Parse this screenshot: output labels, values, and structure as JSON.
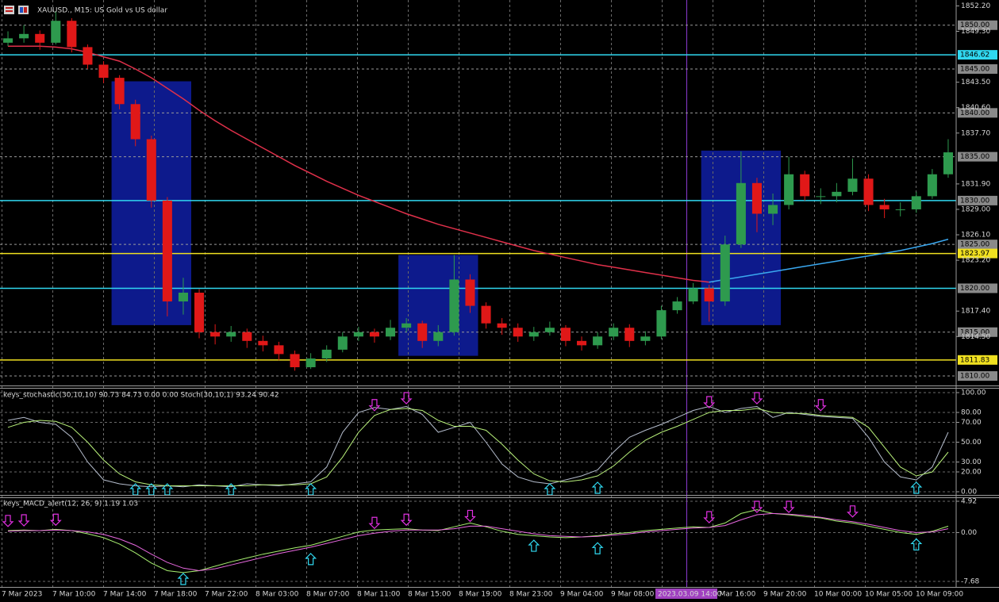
{
  "chart_data": [
    {
      "type": "candlestick",
      "title": "XAUUSD., M15: US Gold vs US dollar",
      "open": [
        1848,
        1848.5,
        1849,
        1848,
        1850.5,
        1847.5,
        1845.5,
        1844,
        1841,
        1837,
        1830,
        1818.5,
        1819.5,
        1815,
        1814.5,
        1815,
        1814,
        1813.5,
        1812.5,
        1811,
        1812,
        1813,
        1814.5,
        1815,
        1814.5,
        1815.5,
        1816,
        1814,
        1815,
        1821,
        1818,
        1816,
        1815.5,
        1814.5,
        1815,
        1815.5,
        1814,
        1813.5,
        1814.5,
        1815.5,
        1814,
        1814.5,
        1817.5,
        1818.5,
        1820,
        1818.5,
        1825,
        1832,
        1828.5,
        1829.5,
        1833,
        1830.5,
        1830.5,
        1831,
        1832.5,
        1829.5,
        1829,
        1829,
        1830.5,
        1833
      ],
      "high": [
        1849.3,
        1850,
        1849.4,
        1851.6,
        1850.8,
        1847.8,
        1845.9,
        1844.3,
        1841.5,
        1837.4,
        1830.4,
        1821.2,
        1819.9,
        1815.9,
        1815.7,
        1815.4,
        1814.6,
        1813.9,
        1812.9,
        1812.6,
        1813.5,
        1815,
        1815.6,
        1815.4,
        1816.4,
        1816.6,
        1816.3,
        1815.8,
        1823.8,
        1821.6,
        1818.4,
        1816.6,
        1816,
        1815.6,
        1816.2,
        1815.8,
        1814.5,
        1815,
        1816,
        1815.9,
        1815.1,
        1818,
        1819,
        1820.6,
        1820.4,
        1826,
        1835.6,
        1832.6,
        1830.8,
        1835,
        1833.4,
        1831.4,
        1832,
        1834.8,
        1833,
        1830.2,
        1829.8,
        1831,
        1833.6,
        1837
      ],
      "low": [
        1847.6,
        1848,
        1847.2,
        1847.8,
        1846.9,
        1845,
        1843.4,
        1840.4,
        1836.2,
        1829.2,
        1816.8,
        1817,
        1814.3,
        1813.6,
        1813.9,
        1813.2,
        1812.8,
        1811.8,
        1810.6,
        1810.8,
        1811.6,
        1812.7,
        1814,
        1813.8,
        1814.1,
        1815,
        1813.2,
        1813.4,
        1814.6,
        1817.2,
        1815.4,
        1814.7,
        1813.9,
        1814,
        1814.6,
        1813.4,
        1812.9,
        1813.1,
        1814.1,
        1813.3,
        1813.5,
        1814.2,
        1817.1,
        1818.2,
        1816.2,
        1818,
        1824.6,
        1826.4,
        1827.2,
        1829,
        1830,
        1829.6,
        1829.8,
        1830.6,
        1828.8,
        1828,
        1828.2,
        1828.6,
        1830.2,
        1832.6
      ],
      "close": [
        1848.5,
        1849,
        1848,
        1850.5,
        1847.5,
        1845.5,
        1844,
        1841,
        1837,
        1830,
        1818.5,
        1819.5,
        1815,
        1814.5,
        1815,
        1814,
        1813.5,
        1812.5,
        1811,
        1812,
        1813,
        1814.5,
        1815,
        1814.5,
        1815.5,
        1816,
        1814,
        1815,
        1821,
        1818,
        1816,
        1815.5,
        1814.5,
        1815,
        1815.5,
        1814,
        1813.5,
        1814.5,
        1815.5,
        1814,
        1814.5,
        1817.5,
        1818.5,
        1820,
        1818.5,
        1825,
        1832,
        1828.5,
        1829.5,
        1833,
        1830.5,
        1830.5,
        1831,
        1832.5,
        1829.5,
        1829,
        1829,
        1830.5,
        1833,
        1835.5
      ],
      "up_color": "#2e9a4e",
      "down_color": "#e01818",
      "moving_averages": [
        {
          "color": "#e0304a",
          "values": [
            1847.6,
            1847.6,
            1847.6,
            1847.5,
            1847.3,
            1846.9,
            1846.4,
            1845.9,
            1845,
            1844,
            1842.8,
            1841.6,
            1840.3,
            1839.1,
            1838,
            1837,
            1836,
            1835,
            1834,
            1833.1,
            1832.2,
            1831.4,
            1830.6,
            1829.9,
            1829.2,
            1828.5,
            1827.9,
            1827.3,
            1826.8,
            1826.3,
            1825.8,
            1825.3,
            1824.8,
            1824.3,
            1823.9,
            1823.5,
            1823.1,
            1822.7,
            1822.4,
            1822.1,
            1821.8,
            1821.5,
            1821.2,
            1820.9,
            1820.7,
            null,
            null,
            null,
            null,
            null,
            null,
            null,
            null,
            null,
            null,
            null,
            null,
            null,
            null,
            null
          ]
        },
        {
          "color": "#3aa8f0",
          "values": [
            null,
            null,
            null,
            null,
            null,
            null,
            null,
            null,
            null,
            null,
            null,
            null,
            null,
            null,
            null,
            null,
            null,
            null,
            null,
            null,
            null,
            null,
            null,
            null,
            null,
            null,
            null,
            null,
            null,
            null,
            null,
            null,
            null,
            null,
            null,
            null,
            null,
            null,
            null,
            null,
            null,
            null,
            null,
            null,
            1820.7,
            1821,
            1821.3,
            1821.6,
            1821.9,
            1822.2,
            1822.5,
            1822.8,
            1823.1,
            1823.4,
            1823.7,
            1824,
            1824.3,
            1824.7,
            1825.1,
            1825.6
          ]
        }
      ],
      "zones": [
        {
          "from": 7,
          "to": 11,
          "high": 1843.6,
          "low": 1815.8
        },
        {
          "from": 25,
          "to": 29,
          "high": 1823.8,
          "low": 1812.3
        },
        {
          "from": 44,
          "to": 48,
          "high": 1835.7,
          "low": 1815.8
        }
      ],
      "zone_color": "#0d1a8c",
      "levels": [
        {
          "value": 1850,
          "label": "1850.00",
          "color": "#9a9a9a",
          "box_color": "#8a8a8a",
          "style": "dashed"
        },
        {
          "value": 1846.62,
          "label": "1846.62",
          "color": "#30d8f0",
          "box_color": "#30d8f0",
          "style": "solid"
        },
        {
          "value": 1845,
          "label": "1845.00",
          "color": "#9a9a9a",
          "box_color": "#8a8a8a",
          "style": "dashed"
        },
        {
          "value": 1840,
          "label": "1840.00",
          "color": "#9a9a9a",
          "box_color": "#8a8a8a",
          "style": "dashed"
        },
        {
          "value": 1835,
          "label": "1835.00",
          "color": "#9a9a9a",
          "box_color": "#8a8a8a",
          "style": "dashed"
        },
        {
          "value": 1830,
          "label": "1830.00",
          "color": "#30d8f0",
          "box_color": "#8a8a8a",
          "style": "solid"
        },
        {
          "value": 1825,
          "label": "1825.00",
          "color": "#9a9a9a",
          "box_color": "#8a8a8a",
          "style": "dashed"
        },
        {
          "value": 1823.97,
          "label": "1823.97",
          "color": "#f0e020",
          "box_color": "#f0e020",
          "style": "solid"
        },
        {
          "value": 1820,
          "label": "1820.00",
          "color": "#30d8f0",
          "box_color": "#8a8a8a",
          "style": "solid"
        },
        {
          "value": 1815,
          "label": "1815.00",
          "color": "#9a9a9a",
          "box_color": "#8a8a8a",
          "style": "dashed"
        },
        {
          "value": 1811.83,
          "label": "1811.83",
          "color": "#f0e020",
          "box_color": "#f0e020",
          "style": "solid"
        },
        {
          "value": 1810,
          "label": "1810.00",
          "color": "#9a9a9a",
          "box_color": "#8a8a8a",
          "style": "dashed"
        }
      ],
      "ylim": [
        1809.1,
        1852.6
      ],
      "yticks": [
        {
          "value": 1852.2,
          "label": "1852.20"
        },
        {
          "value": 1849.3,
          "label": "1849.30"
        },
        {
          "value": 1843.5,
          "label": "1843.50"
        },
        {
          "value": 1840.6,
          "label": "1840.60"
        },
        {
          "value": 1837.7,
          "label": "1837.70"
        },
        {
          "value": 1831.9,
          "label": "1831.90"
        },
        {
          "value": 1829,
          "label": "1829.00"
        },
        {
          "value": 1826.1,
          "label": "1826.10"
        },
        {
          "value": 1823.2,
          "label": "1823.20"
        },
        {
          "value": 1817.4,
          "label": "1817.40"
        },
        {
          "value": 1814.5,
          "label": "1814.50"
        }
      ],
      "x_labels": [
        "7 Mar 2023",
        "7 Mar 10:00",
        "7 Mar 14:00",
        "7 Mar 18:00",
        "7 Mar 22:00",
        "8 Mar 03:00",
        "8 Mar 07:00",
        "8 Mar 11:00",
        "8 Mar 15:00",
        "8 Mar 19:00",
        "8 Mar 23:00",
        "9 Mar 04:00",
        "9 Mar 08:00",
        null,
        "9 Mar 16:00",
        "9 Mar 20:00",
        "10 Mar 00:00",
        "10 Mar 05:00",
        "10 Mar 09:00"
      ],
      "crosshair_label": "2023.03.09 14:00",
      "grid": true
    },
    {
      "type": "line",
      "title": "keys_stochastic(30,10,10) 90.73 84.73 0.00 0.00 Stoch(30,10,1) 93.24 90.42",
      "series": [
        {
          "color": "#b4bccc",
          "values": [
            72,
            75,
            70,
            68,
            55,
            30,
            12,
            8,
            6,
            5,
            6,
            5,
            7,
            6,
            5,
            8,
            7,
            6,
            8,
            10,
            25,
            60,
            80,
            85,
            83,
            86,
            78,
            60,
            65,
            70,
            50,
            28,
            15,
            10,
            8,
            12,
            16,
            22,
            40,
            55,
            62,
            68,
            75,
            82,
            86,
            80,
            84,
            86,
            75,
            80,
            78,
            76,
            75,
            74,
            55,
            30,
            15,
            12,
            25,
            60
          ]
        },
        {
          "color": "#b8f07a",
          "values": [
            65,
            70,
            72,
            71,
            65,
            50,
            32,
            18,
            10,
            7,
            6,
            6,
            6,
            6,
            6,
            6,
            7,
            7,
            7,
            8,
            15,
            35,
            60,
            77,
            83,
            84,
            82,
            72,
            66,
            66,
            62,
            48,
            32,
            18,
            11,
            10,
            12,
            16,
            26,
            40,
            52,
            60,
            66,
            73,
            80,
            82,
            82,
            84,
            80,
            79,
            79,
            77,
            76,
            75,
            65,
            45,
            25,
            16,
            20,
            40
          ]
        }
      ],
      "arrows_up": [
        8,
        9,
        10,
        14,
        19,
        34,
        37,
        57
      ],
      "arrows_down": [
        23,
        25,
        44,
        47,
        51
      ],
      "ylim": [
        0,
        100
      ],
      "yticks": [
        {
          "value": 100,
          "label": "100.00"
        },
        {
          "value": 80,
          "label": "80.00"
        },
        {
          "value": 70,
          "label": "70.00"
        },
        {
          "value": 50,
          "label": "50.00"
        },
        {
          "value": 30,
          "label": "30.00"
        },
        {
          "value": 20,
          "label": "20.00"
        },
        {
          "value": 0,
          "label": "0.00"
        }
      ],
      "grid": true
    },
    {
      "type": "line",
      "title": "keys_MACD_alert(12, 26, 9) 1.19 1.03",
      "series": [
        {
          "color": "#a8f070",
          "values": [
            0.3,
            0.4,
            0.3,
            0.5,
            0.3,
            -0.2,
            -0.8,
            -1.8,
            -3.2,
            -4.8,
            -6,
            -6.3,
            -6,
            -5.3,
            -4.6,
            -4,
            -3.4,
            -2.9,
            -2.4,
            -2,
            -1.3,
            -0.6,
            0.1,
            0.4,
            0.5,
            0.6,
            0.4,
            0.3,
            0.9,
            1.5,
            0.9,
            0.2,
            -0.3,
            -0.5,
            -0.7,
            -0.8,
            -0.7,
            -0.5,
            -0.2,
            0,
            0.3,
            0.5,
            0.7,
            0.9,
            0.8,
            1.5,
            3,
            3.6,
            3,
            2.8,
            2.5,
            2.3,
            1.8,
            1.5,
            1,
            0.5,
            0,
            -0.3,
            0.2,
            1
          ]
        },
        {
          "color": "#e868e0",
          "values": [
            0.2,
            0.3,
            0.3,
            0.4,
            0.3,
            0.1,
            -0.3,
            -1,
            -2,
            -3.4,
            -4.7,
            -5.6,
            -6,
            -5.7,
            -5.1,
            -4.5,
            -3.9,
            -3.3,
            -2.8,
            -2.3,
            -1.7,
            -1.1,
            -0.5,
            -0.1,
            0.2,
            0.4,
            0.4,
            0.4,
            0.6,
            1,
            1,
            0.6,
            0.2,
            -0.2,
            -0.5,
            -0.6,
            -0.7,
            -0.6,
            -0.4,
            -0.2,
            0.1,
            0.3,
            0.5,
            0.7,
            0.8,
            1.1,
            2,
            2.8,
            3,
            2.9,
            2.7,
            2.4,
            2,
            1.7,
            1.3,
            0.8,
            0.3,
            0,
            0.1,
            0.6
          ]
        }
      ],
      "arrows_up": [
        11,
        19,
        33,
        37,
        57
      ],
      "arrows_down": [
        0,
        1,
        3,
        23,
        25,
        29,
        44,
        47,
        49,
        53
      ],
      "ylim": [
        -7.68,
        4.92
      ],
      "yticks": [
        {
          "value": 4.92,
          "label": "4.92"
        },
        {
          "value": 0,
          "label": "0.00"
        },
        {
          "value": -7.68,
          "label": "-7.68"
        }
      ],
      "grid": true
    }
  ]
}
